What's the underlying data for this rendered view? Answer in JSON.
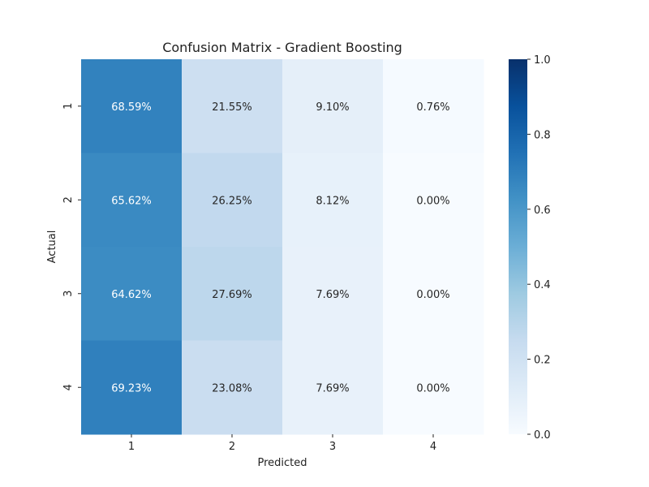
{
  "chart_data": {
    "type": "heatmap",
    "title": "Confusion Matrix - Gradient Boosting",
    "xlabel": "Predicted",
    "ylabel": "Actual",
    "x_categories": [
      "1",
      "2",
      "3",
      "4"
    ],
    "y_categories": [
      "1",
      "2",
      "3",
      "4"
    ],
    "values": [
      [
        68.59,
        21.55,
        9.1,
        0.76
      ],
      [
        65.62,
        26.25,
        8.12,
        0.0
      ],
      [
        64.62,
        27.69,
        7.69,
        0.0
      ],
      [
        69.23,
        23.08,
        7.69,
        0.0
      ]
    ],
    "cell_labels": [
      [
        "68.59%",
        "21.55%",
        "9.10%",
        "0.76%"
      ],
      [
        "65.62%",
        "26.25%",
        "8.12%",
        "0.00%"
      ],
      [
        "64.62%",
        "27.69%",
        "7.69%",
        "0.00%"
      ],
      [
        "69.23%",
        "23.08%",
        "7.69%",
        "0.00%"
      ]
    ],
    "colormap": "Blues",
    "colorbar": {
      "range": [
        0,
        1
      ],
      "ticks": [
        "0.0",
        "0.2",
        "0.4",
        "0.6",
        "0.8",
        "1.0"
      ]
    },
    "grid": false,
    "legend": "colorbar-right"
  }
}
